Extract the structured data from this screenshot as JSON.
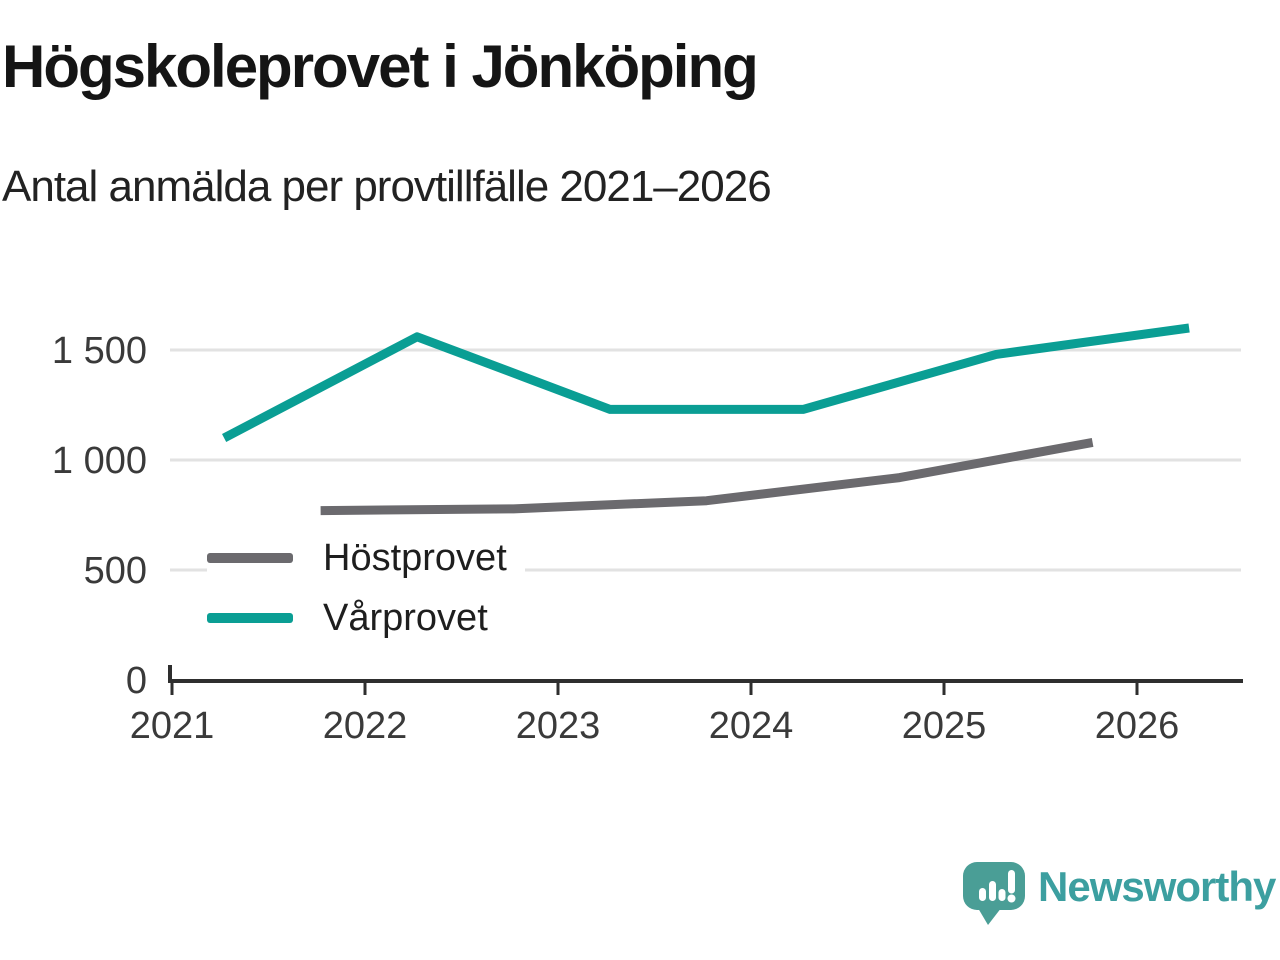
{
  "header": {
    "title": "Högskoleprovet i Jönköping",
    "subtitle": "Antal anmälda per provtillfälle 2021–2026"
  },
  "chart_data": {
    "type": "line",
    "title": "Högskoleprovet i Jönköping",
    "subtitle": "Antal anmälda per provtillfälle 2021–2026",
    "xlabel": "",
    "ylabel": "",
    "x_ticks": [
      2021,
      2022,
      2023,
      2024,
      2025,
      2026
    ],
    "y_ticks": [
      0,
      500,
      1000,
      1500
    ],
    "y_tick_labels": [
      "0",
      "500",
      "1 000",
      "1 500"
    ],
    "xlim": [
      2021,
      2026.55
    ],
    "ylim": [
      0,
      1640
    ],
    "grid": "horizontal-only",
    "legend_position": "inside-middle-left",
    "series": [
      {
        "name": "Höstprovet",
        "color": "#6b6a6e",
        "x": [
          2021.77,
          2022.77,
          2023.77,
          2024.77,
          2025.77
        ],
        "values": [
          770,
          778,
          815,
          920,
          1080
        ]
      },
      {
        "name": "Vårprovet",
        "color": "#0a9e94",
        "x": [
          2021.27,
          2022.27,
          2023.27,
          2024.27,
          2025.27,
          2026.27
        ],
        "values": [
          1100,
          1560,
          1230,
          1230,
          1480,
          1600
        ]
      }
    ]
  },
  "footer": {
    "brand": "Newsworthy",
    "brand_color": "#3c9fa0",
    "logo_color": "#4a9e96"
  },
  "colors": {
    "background": "#ffffff",
    "gridline": "#e2e2e2",
    "axis": "#2e2e2e",
    "tick_label": "#3a3a3a",
    "title": "#151515",
    "subtitle": "#222222"
  }
}
